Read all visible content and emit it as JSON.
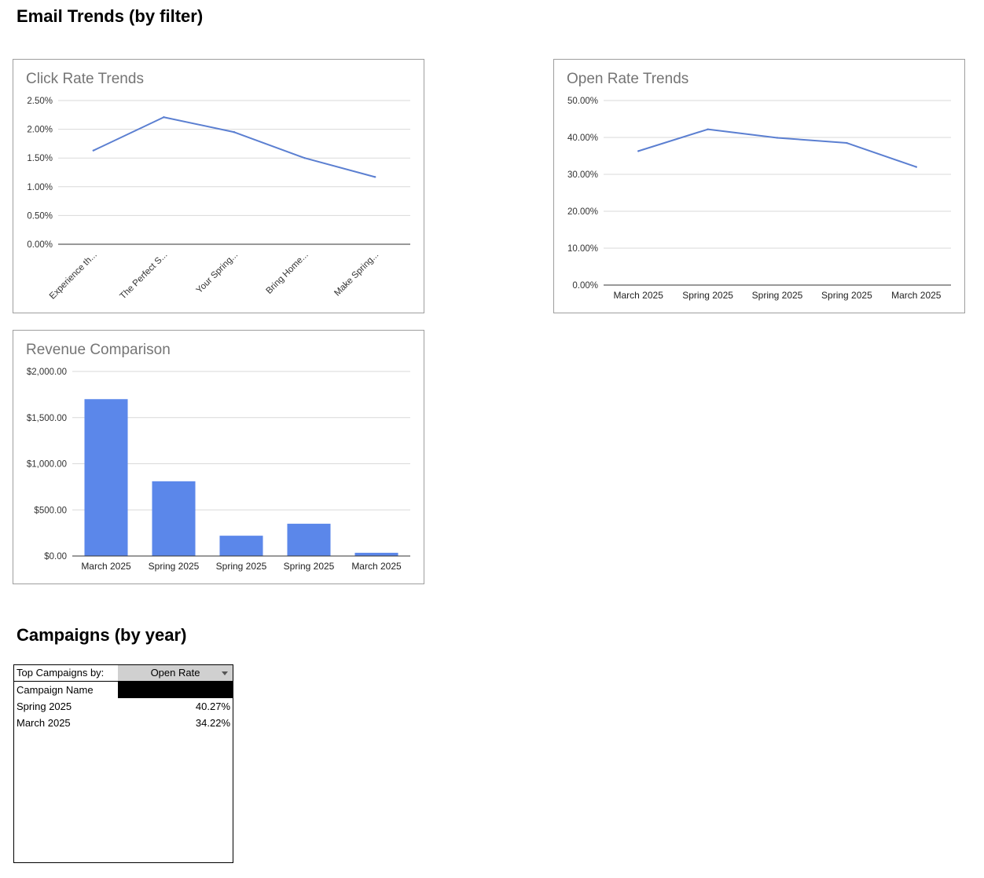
{
  "page": {
    "section1_title": "Email Trends (by filter)",
    "section2_title": "Campaigns (by year)"
  },
  "chart_data": [
    {
      "type": "line",
      "title": "Click Rate Trends",
      "categories": [
        "Experience th...",
        "The Perfect S...",
        "Your Spring...",
        "Bring Home...",
        "Make Spring..."
      ],
      "values": [
        1.63,
        2.21,
        1.95,
        1.5,
        1.17
      ],
      "unit": "%",
      "ylim": [
        0,
        2.5
      ],
      "yticks": [
        0,
        0.5,
        1.0,
        1.5,
        2.0,
        2.5
      ],
      "ytick_labels": [
        "0.00%",
        "0.50%",
        "1.00%",
        "1.50%",
        "2.00%",
        "2.50%"
      ],
      "grid": true,
      "legend": "none",
      "color": "#5b7fd1"
    },
    {
      "type": "line",
      "title": "Open Rate Trends",
      "categories": [
        "March 2025",
        "Spring 2025",
        "Spring 2025",
        "Spring 2025",
        "March 2025"
      ],
      "values": [
        36.3,
        42.2,
        39.9,
        38.5,
        32.0
      ],
      "unit": "%",
      "ylim": [
        0,
        50
      ],
      "yticks": [
        0,
        10,
        20,
        30,
        40,
        50
      ],
      "ytick_labels": [
        "0.00%",
        "10.00%",
        "20.00%",
        "30.00%",
        "40.00%",
        "50.00%"
      ],
      "grid": true,
      "legend": "none",
      "color": "#5b7fd1"
    },
    {
      "type": "bar",
      "title": "Revenue Comparison",
      "categories": [
        "March 2025",
        "Spring 2025",
        "Spring 2025",
        "Spring 2025",
        "March 2025"
      ],
      "values": [
        1700,
        810,
        220,
        350,
        35
      ],
      "unit": "$",
      "ylim": [
        0,
        2000
      ],
      "yticks": [
        0,
        500,
        1000,
        1500,
        2000
      ],
      "ytick_labels": [
        "$0.00",
        "$500.00",
        "$1,000.00",
        "$1,500.00",
        "$2,000.00"
      ],
      "grid": true,
      "legend": "none",
      "color": "#5b87ea"
    }
  ],
  "campaigns": {
    "filter_label": "Top Campaigns by:",
    "filter_value": "Open Rate",
    "column_header": "Campaign Name",
    "rows": [
      {
        "name": "Spring 2025",
        "value": "40.27%"
      },
      {
        "name": "March 2025",
        "value": "34.22%"
      }
    ]
  }
}
